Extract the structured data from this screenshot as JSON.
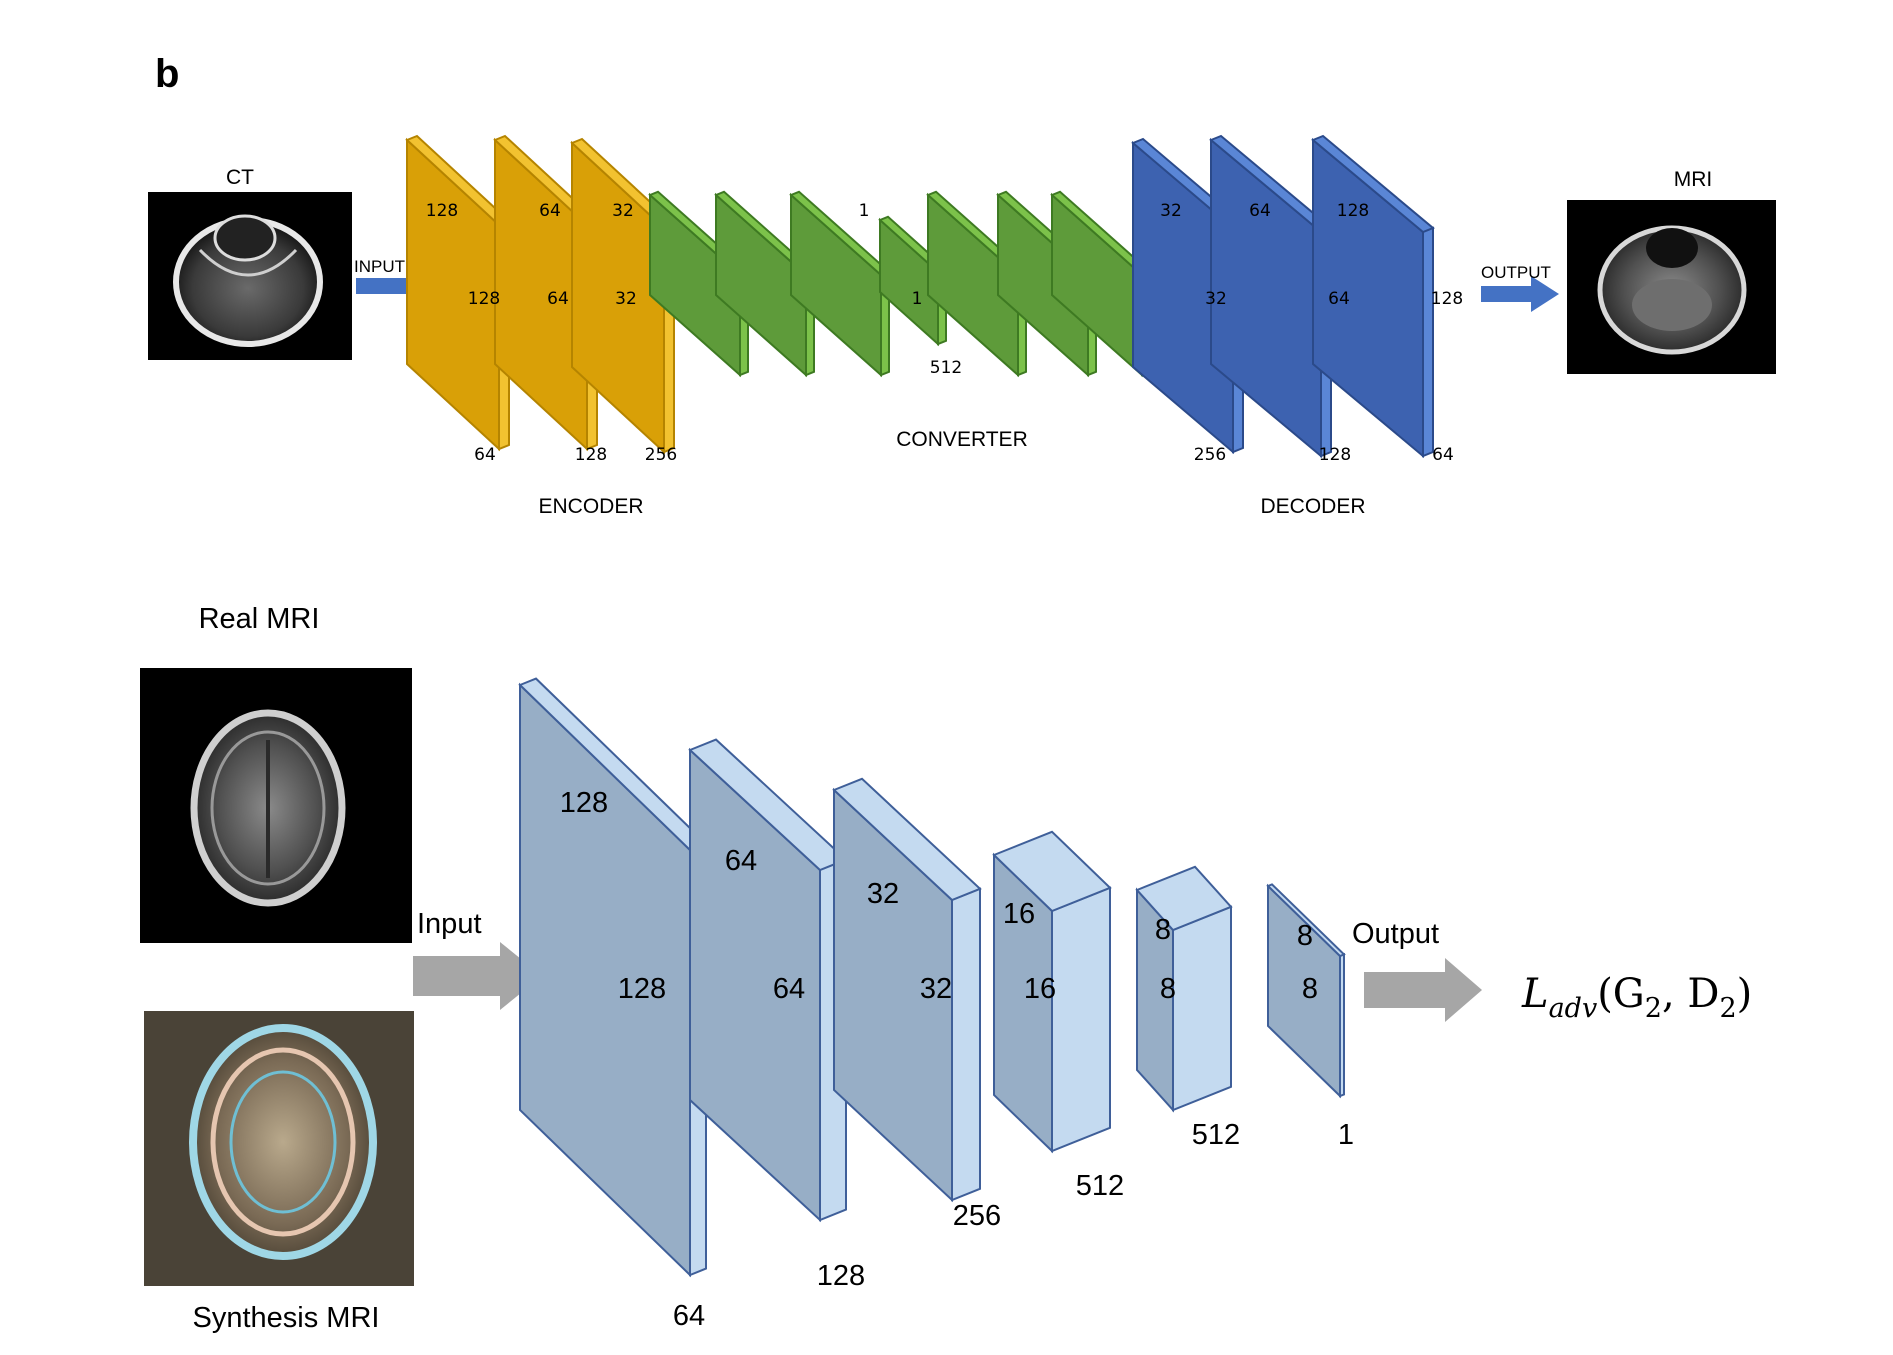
{
  "panel_label": "b",
  "generator": {
    "input_image_label": "CT",
    "output_image_label": "MRI",
    "input_arrow_label": "INPUT",
    "output_arrow_label": "OUTPUT",
    "encoder_label": "ENCODER",
    "converter_label": "CONVERTER",
    "decoder_label": "DECODER",
    "encoder_layers": [
      {
        "height": "128",
        "width": "128",
        "depth": "64"
      },
      {
        "height": "64",
        "width": "64",
        "depth": "128"
      },
      {
        "height": "32",
        "width": "32",
        "depth": "256"
      }
    ],
    "converter_mid_layer": {
      "height": "1",
      "width": "1",
      "depth": "512"
    },
    "decoder_layers": [
      {
        "height": "32",
        "width": "32",
        "depth": "256"
      },
      {
        "height": "64",
        "width": "64",
        "depth": "128"
      },
      {
        "height": "128",
        "width": "128",
        "depth": "64"
      }
    ],
    "colors": {
      "encoder": "#d9a007",
      "converter": "#5e9b3a",
      "decoder": "#3d62b0",
      "arrow": "#4472c4"
    }
  },
  "discriminator": {
    "real_image_label": "Real MRI",
    "synth_image_label": "Synthesis MRI",
    "input_arrow_label": "Input",
    "output_arrow_label": "Output",
    "loss_label": "L",
    "loss_subscript": "adv",
    "loss_args": "(G",
    "loss_args_sub1": "2",
    "loss_args_mid": ", D",
    "loss_args_sub2": "2",
    "loss_args_end": ")",
    "layers": [
      {
        "height": "128",
        "width": "128",
        "depth": "64"
      },
      {
        "height": "64",
        "width": "64",
        "depth": "128"
      },
      {
        "height": "32",
        "width": "32",
        "depth": "256"
      },
      {
        "height": "16",
        "width": "16",
        "depth": "512"
      },
      {
        "height": "8",
        "width": "8",
        "depth": "512"
      },
      {
        "height": "8",
        "width": "8",
        "depth": "1"
      }
    ],
    "colors": {
      "face": "#97aec6",
      "side": "#c4daf0",
      "edge": "#3f5f99",
      "arrow": "#a6a6a6"
    }
  }
}
